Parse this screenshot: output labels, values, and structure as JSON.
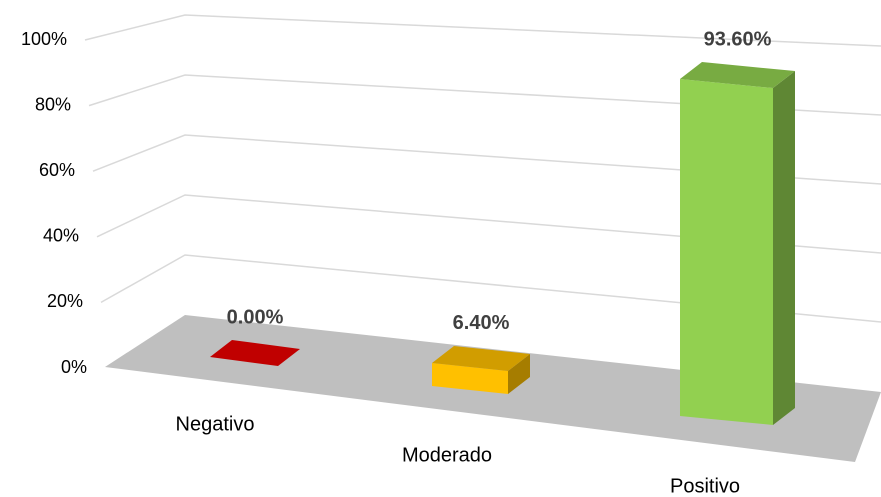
{
  "chart_data": {
    "type": "bar3d",
    "categories": [
      "Negativo",
      "Moderado",
      "Positivo"
    ],
    "values": [
      0,
      6.4,
      93.6
    ],
    "value_labels": [
      "0.00%",
      "6.40%",
      "93.60%"
    ],
    "colors": [
      "#c00000",
      "#ffc000",
      "#92d050"
    ],
    "ylim": [
      0,
      100
    ],
    "yticks": [
      {
        "value": 0,
        "label": "0%"
      },
      {
        "value": 20,
        "label": "20%"
      },
      {
        "value": 40,
        "label": "40%"
      },
      {
        "value": 60,
        "label": "60%"
      },
      {
        "value": 80,
        "label": "80%"
      },
      {
        "value": 100,
        "label": "100%"
      }
    ],
    "grid": true
  }
}
